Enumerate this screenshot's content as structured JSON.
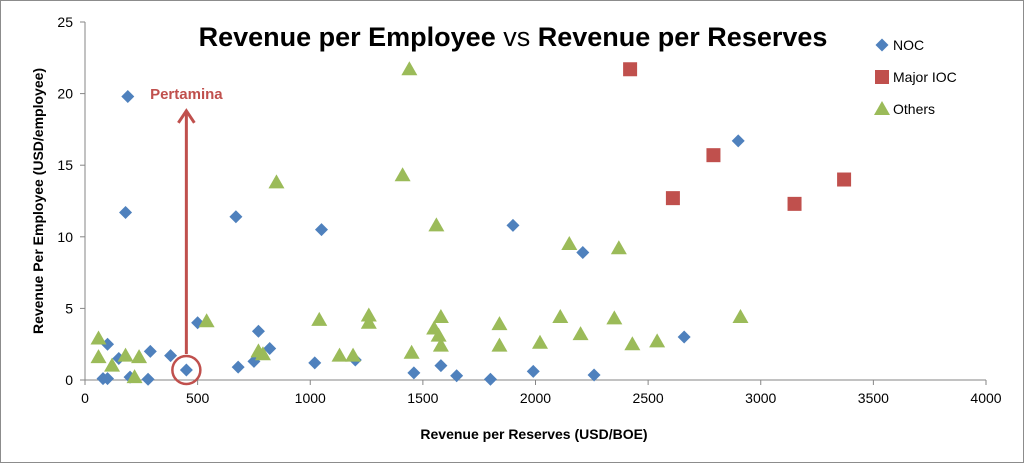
{
  "chart_data": {
    "type": "scatter",
    "title_parts": [
      "Revenue per Employee",
      " vs ",
      "Revenue per Reserves"
    ],
    "xlabel": "Revenue per Reserves (USD/BOE)",
    "ylabel": "Revenue Per Employee (USD/employee)",
    "xlim": [
      0,
      4000
    ],
    "ylim": [
      0,
      25
    ],
    "xticks": [
      0,
      500,
      1000,
      1500,
      2000,
      2500,
      3000,
      3500,
      4000
    ],
    "yticks": [
      0,
      5,
      10,
      15,
      20,
      25
    ],
    "grid": false,
    "legend_position": "top-right",
    "annotation": {
      "text": "Pertamina",
      "x": 450,
      "y": 0.7,
      "arrow_to_y": 18.8
    },
    "colors": {
      "noc": "#4f81bd",
      "major_ioc": "#c0504d",
      "others": "#9bbb59",
      "annotation": "#c0504d"
    },
    "series": [
      {
        "name": "NOC",
        "marker": "diamond",
        "points": [
          [
            190,
            19.8
          ],
          [
            180,
            11.7
          ],
          [
            670,
            11.4
          ],
          [
            1050,
            10.5
          ],
          [
            1900,
            10.8
          ],
          [
            2210,
            8.9
          ],
          [
            2900,
            16.7
          ],
          [
            100,
            2.5
          ],
          [
            150,
            1.5
          ],
          [
            290,
            2.0
          ],
          [
            380,
            1.7
          ],
          [
            500,
            4.0
          ],
          [
            770,
            3.4
          ],
          [
            820,
            2.2
          ],
          [
            750,
            1.3
          ],
          [
            680,
            0.9
          ],
          [
            450,
            0.7
          ],
          [
            80,
            0.1
          ],
          [
            100,
            0.1
          ],
          [
            200,
            0.2
          ],
          [
            280,
            0.05
          ],
          [
            1020,
            1.2
          ],
          [
            1200,
            1.4
          ],
          [
            1460,
            0.5
          ],
          [
            1580,
            1.0
          ],
          [
            1650,
            0.3
          ],
          [
            1800,
            0.05
          ],
          [
            1990,
            0.6
          ],
          [
            2260,
            0.35
          ],
          [
            2660,
            3.0
          ]
        ]
      },
      {
        "name": "Major IOC",
        "marker": "square",
        "points": [
          [
            2420,
            21.7
          ],
          [
            2610,
            12.7
          ],
          [
            2790,
            15.7
          ],
          [
            3150,
            12.3
          ],
          [
            3370,
            14.0
          ]
        ]
      },
      {
        "name": "Others",
        "marker": "triangle",
        "points": [
          [
            60,
            2.9
          ],
          [
            60,
            1.6
          ],
          [
            120,
            1.0
          ],
          [
            180,
            1.7
          ],
          [
            220,
            0.2
          ],
          [
            240,
            1.6
          ],
          [
            540,
            4.1
          ],
          [
            770,
            2.0
          ],
          [
            790,
            1.8
          ],
          [
            850,
            13.8
          ],
          [
            1040,
            4.2
          ],
          [
            1130,
            1.7
          ],
          [
            1190,
            1.7
          ],
          [
            1260,
            4.5
          ],
          [
            1260,
            4.0
          ],
          [
            1410,
            14.3
          ],
          [
            1440,
            21.7
          ],
          [
            1450,
            1.9
          ],
          [
            1550,
            3.6
          ],
          [
            1560,
            10.8
          ],
          [
            1570,
            3.1
          ],
          [
            1580,
            4.4
          ],
          [
            1580,
            2.4
          ],
          [
            1840,
            2.4
          ],
          [
            1840,
            3.9
          ],
          [
            2020,
            2.6
          ],
          [
            2110,
            4.4
          ],
          [
            2150,
            9.5
          ],
          [
            2200,
            3.2
          ],
          [
            2350,
            4.3
          ],
          [
            2370,
            9.2
          ],
          [
            2430,
            2.5
          ],
          [
            2540,
            2.7
          ],
          [
            2910,
            4.4
          ]
        ]
      }
    ]
  }
}
